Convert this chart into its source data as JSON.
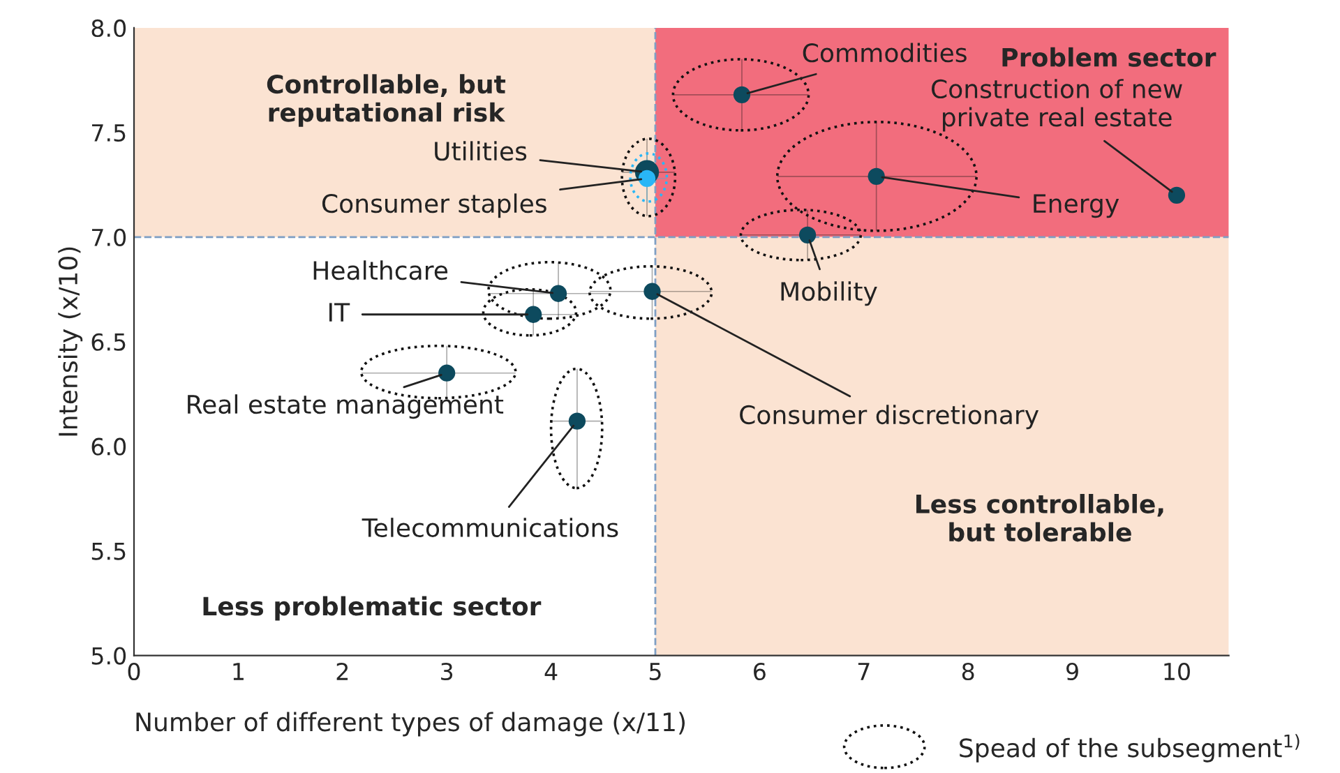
{
  "chart_data": {
    "type": "scatter",
    "xlabel": "Number of different types of damage (x/11)",
    "ylabel": "Intensity (x/10)",
    "xlim": [
      0,
      10.5
    ],
    "ylim": [
      5,
      8
    ],
    "xticks": [
      0,
      1,
      2,
      3,
      4,
      5,
      6,
      7,
      8,
      9,
      10
    ],
    "yticks": [
      {
        "value": 5,
        "label": "5.0"
      },
      {
        "value": 5.5,
        "label": "5.5"
      },
      {
        "value": 6,
        "label": "6.0"
      },
      {
        "value": 6.5,
        "label": "6.5"
      },
      {
        "value": 7,
        "label": "7.0"
      },
      {
        "value": 7.5,
        "label": "7.5"
      },
      {
        "value": 8,
        "label": "8.0"
      }
    ],
    "grid": false,
    "marker": "circle",
    "series": [
      {
        "name": "Commodities",
        "color": "#0d4a5e",
        "x": [
          5.83
        ],
        "values": [
          7.68
        ],
        "xerrors": [
          [
            5.17,
            6.47
          ]
        ],
        "errors": [
          [
            7.51,
            7.85
          ]
        ]
      },
      {
        "name": "Construction of new\nprivate real estate",
        "color": "#0d4a5e",
        "x": [
          10
        ],
        "values": [
          7.2
        ]
      },
      {
        "name": "Energy",
        "color": "#0d4a5e",
        "x": [
          7.12
        ],
        "values": [
          7.29
        ],
        "xerrors": [
          [
            6.17,
            8.08
          ]
        ],
        "errors": [
          [
            7.03,
            7.55
          ]
        ]
      },
      {
        "name": "Utilities",
        "color": "#0d4a5e",
        "x": [
          4.92
        ],
        "values": [
          7.31
        ],
        "xerrors": [
          [
            4.68,
            5.19
          ]
        ],
        "errors": [
          [
            7.1,
            7.47
          ]
        ]
      },
      {
        "name": "Consumer staples",
        "color": "#29b6f6",
        "x": [
          4.92
        ],
        "values": [
          7.28
        ],
        "xerrors": [
          [
            4.76,
            5.11
          ]
        ],
        "errors": [
          [
            7.17,
            7.4
          ]
        ]
      },
      {
        "name": "Mobility",
        "color": "#0d4a5e",
        "x": [
          6.46
        ],
        "values": [
          7.01
        ],
        "xerrors": [
          [
            5.82,
            6.97
          ]
        ],
        "errors": [
          [
            6.89,
            7.13
          ]
        ]
      },
      {
        "name": "Healthcare",
        "color": "#0d4a5e",
        "x": [
          4.07
        ],
        "values": [
          6.73
        ],
        "xerrors": [
          [
            3.4,
            4.57
          ]
        ],
        "errors": [
          [
            6.61,
            6.88
          ]
        ]
      },
      {
        "name": "IT",
        "color": "#0d4a5e",
        "x": [
          3.83
        ],
        "values": [
          6.63
        ],
        "xerrors": [
          [
            3.35,
            4.24
          ]
        ],
        "errors": [
          [
            6.53,
            6.75
          ]
        ]
      },
      {
        "name": "Consumer discretionary",
        "color": "#0d4a5e",
        "x": [
          4.97
        ],
        "values": [
          6.74
        ],
        "xerrors": [
          [
            4.37,
            5.54
          ]
        ],
        "errors": [
          [
            6.61,
            6.86
          ]
        ]
      },
      {
        "name": "Real estate management",
        "color": "#0d4a5e",
        "x": [
          3.0
        ],
        "values": [
          6.35
        ],
        "xerrors": [
          [
            2.18,
            3.66
          ]
        ],
        "errors": [
          [
            6.23,
            6.48
          ]
        ]
      },
      {
        "name": "Telecommunications",
        "color": "#0d4a5e",
        "x": [
          4.25
        ],
        "values": [
          6.12
        ],
        "xerrors": [
          [
            4.0,
            4.49
          ]
        ],
        "errors": [
          [
            5.8,
            6.37
          ]
        ]
      }
    ],
    "ref_lines": [
      {
        "axis": "x",
        "value": 5,
        "label": null,
        "color": "#7f9fc4",
        "line_style": "dashed"
      },
      {
        "axis": "y",
        "value": 7,
        "label": null,
        "color": "#7f9fc4",
        "line_style": "dashed"
      }
    ],
    "annotations": [
      "Controllable, but\nreputational risk",
      "Problem sector",
      "Less controllable,\nbut tolerable",
      "Less problematic sector",
      "Spead of the subsegment$^{1)}$"
    ]
  }
}
